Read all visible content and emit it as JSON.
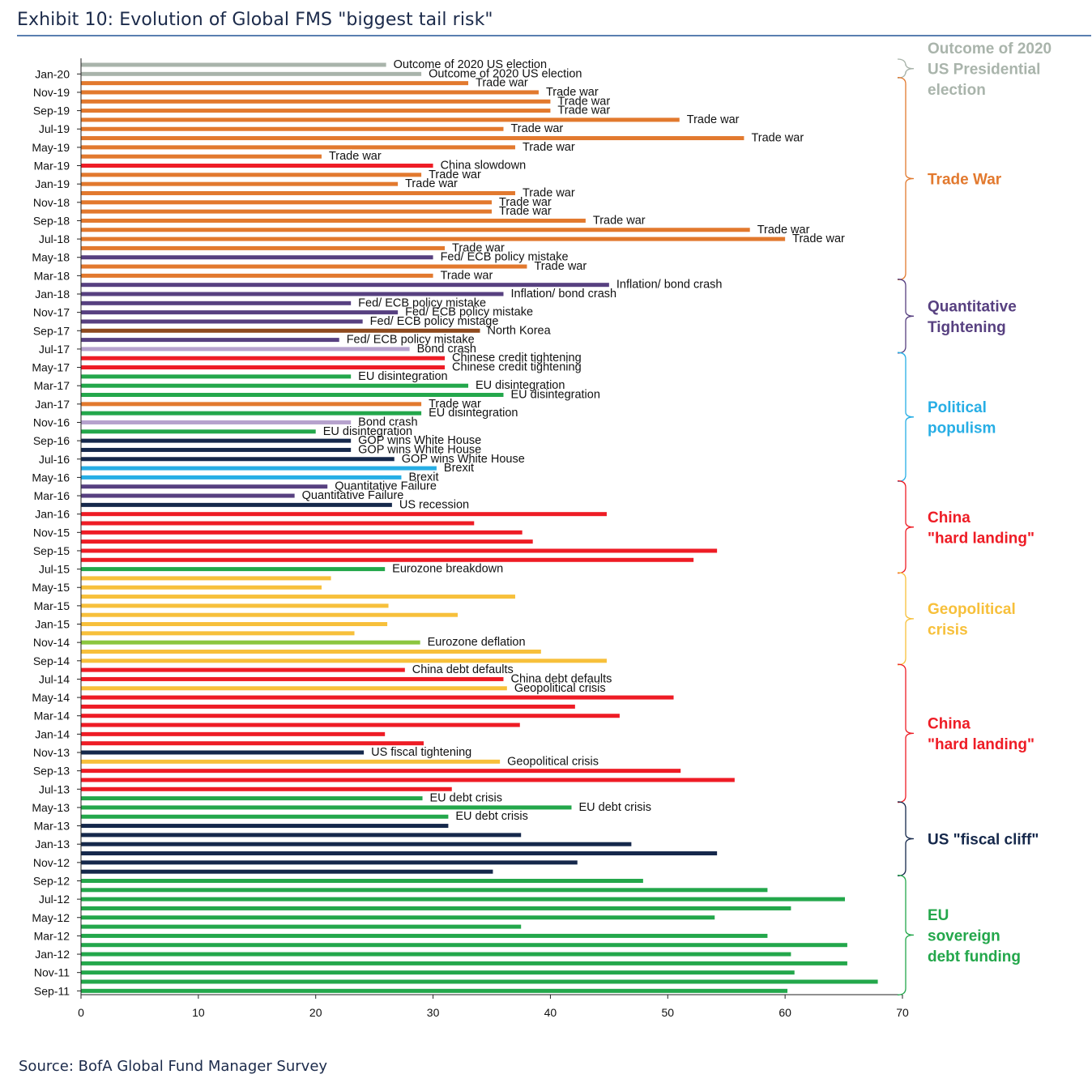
{
  "header": {
    "title": "Exhibit 10: Evolution of Global FMS \"biggest tail risk\""
  },
  "footer": {
    "source": "Source: BofA Global Fund Manager Survey"
  },
  "colors": {
    "election": "#a9b4ab",
    "trade_war": "#e2792e",
    "china": "#ee1c25",
    "fed_policy": "#574080",
    "inflation": "#574080",
    "north_korea": "#8e4a1e",
    "bond_crash": "#b6a2cd",
    "eu": "#23a74b",
    "eurozone_deflation": "#8cc63f",
    "gop": "#15284b",
    "brexit": "#27aee5",
    "quant_failure": "#574080",
    "us": "#15284b",
    "geopolitical": "#f7c03b"
  },
  "chart_data": {
    "type": "bar",
    "orientation": "horizontal",
    "xlim": [
      0,
      70
    ],
    "xticks": [
      0,
      10,
      20,
      30,
      40,
      50,
      60,
      70
    ],
    "grid": false,
    "ytick_labels": [
      "Jan-20",
      "Nov-19",
      "Sep-19",
      "Jul-19",
      "May-19",
      "Mar-19",
      "Jan-19",
      "Nov-18",
      "Sep-18",
      "Jul-18",
      "May-18",
      "Mar-18",
      "Jan-18",
      "Nov-17",
      "Sep-17",
      "Jul-17",
      "May-17",
      "Mar-17",
      "Jan-17",
      "Nov-16",
      "Sep-16",
      "Jul-16",
      "May-16",
      "Mar-16",
      "Jan-16",
      "Nov-15",
      "Sep-15",
      "Jul-15",
      "May-15",
      "Mar-15",
      "Jan-15",
      "Nov-14",
      "Sep-14",
      "Jul-14",
      "May-14",
      "Mar-14",
      "Jan-14",
      "Nov-13",
      "Sep-13",
      "Jul-13",
      "May-13",
      "Mar-13",
      "Jan-13",
      "Nov-12",
      "Sep-12",
      "Jul-12",
      "May-12",
      "Mar-12",
      "Jan-12",
      "Nov-11",
      "Sep-11"
    ],
    "bars": [
      {
        "v": 26,
        "c": "election",
        "l": "Outcome of 2020 US election"
      },
      {
        "v": 29,
        "c": "election",
        "l": "Outcome of 2020 US election"
      },
      {
        "v": 33,
        "c": "trade_war",
        "l": "Trade war"
      },
      {
        "v": 39,
        "c": "trade_war",
        "l": "Trade war"
      },
      {
        "v": 40,
        "c": "trade_war",
        "l": "Trade war"
      },
      {
        "v": 40,
        "c": "trade_war",
        "l": "Trade war"
      },
      {
        "v": 51,
        "c": "trade_war",
        "l": "Trade war"
      },
      {
        "v": 36,
        "c": "trade_war",
        "l": "Trade war"
      },
      {
        "v": 56.5,
        "c": "trade_war",
        "l": "Trade war"
      },
      {
        "v": 37,
        "c": "trade_war",
        "l": "Trade war"
      },
      {
        "v": 20.5,
        "c": "trade_war",
        "l": "Trade war"
      },
      {
        "v": 30,
        "c": "china",
        "l": "China slowdown"
      },
      {
        "v": 29,
        "c": "trade_war",
        "l": "Trade war"
      },
      {
        "v": 27,
        "c": "trade_war",
        "l": "Trade war"
      },
      {
        "v": 37,
        "c": "trade_war",
        "l": "Trade war"
      },
      {
        "v": 35,
        "c": "trade_war",
        "l": "Trade war"
      },
      {
        "v": 35,
        "c": "trade_war",
        "l": "Trade war"
      },
      {
        "v": 43,
        "c": "trade_war",
        "l": "Trade war"
      },
      {
        "v": 57,
        "c": "trade_war",
        "l": "Trade war"
      },
      {
        "v": 60,
        "c": "trade_war",
        "l": "Trade war"
      },
      {
        "v": 31,
        "c": "trade_war",
        "l": "Trade war"
      },
      {
        "v": 30,
        "c": "fed_policy",
        "l": "Fed/ ECB policy mistake"
      },
      {
        "v": 38,
        "c": "trade_war",
        "l": "Trade war"
      },
      {
        "v": 30,
        "c": "trade_war",
        "l": "Trade war"
      },
      {
        "v": 45,
        "c": "inflation",
        "l": "Inflation/ bond crash"
      },
      {
        "v": 36,
        "c": "inflation",
        "l": "Inflation/ bond crash"
      },
      {
        "v": 23,
        "c": "fed_policy",
        "l": "Fed/ ECB policy mistake"
      },
      {
        "v": 27,
        "c": "fed_policy",
        "l": "Fed/ ECB policy mistake"
      },
      {
        "v": 24,
        "c": "fed_policy",
        "l": "Fed/ ECB policy mistage"
      },
      {
        "v": 34,
        "c": "north_korea",
        "l": "North Korea"
      },
      {
        "v": 22,
        "c": "fed_policy",
        "l": "Fed/ ECB policy mistake"
      },
      {
        "v": 28,
        "c": "bond_crash",
        "l": "Bond crash"
      },
      {
        "v": 31,
        "c": "china",
        "l": "Chinese credit tightening"
      },
      {
        "v": 31,
        "c": "china",
        "l": "Chinese credit tightening"
      },
      {
        "v": 23,
        "c": "eu",
        "l": "EU disintegration"
      },
      {
        "v": 33,
        "c": "eu",
        "l": "EU disintegration"
      },
      {
        "v": 36,
        "c": "eu",
        "l": "EU disintegration"
      },
      {
        "v": 29,
        "c": "trade_war",
        "l": "Trade war"
      },
      {
        "v": 29,
        "c": "eu",
        "l": "EU disintegration"
      },
      {
        "v": 23,
        "c": "bond_crash",
        "l": "Bond crash"
      },
      {
        "v": 20,
        "c": "eu",
        "l": "EU disintegration"
      },
      {
        "v": 23,
        "c": "gop",
        "l": "GOP wins White House"
      },
      {
        "v": 23,
        "c": "gop",
        "l": "GOP wins White House"
      },
      {
        "v": 26.7,
        "c": "gop",
        "l": "GOP wins White House"
      },
      {
        "v": 30.3,
        "c": "brexit",
        "l": "Brexit"
      },
      {
        "v": 27.3,
        "c": "brexit",
        "l": "Brexit"
      },
      {
        "v": 21,
        "c": "quant_failure",
        "l": "Quantitative Failure"
      },
      {
        "v": 18.2,
        "c": "quant_failure",
        "l": "Quantitative Failure"
      },
      {
        "v": 26.5,
        "c": "us",
        "l": "US recession"
      },
      {
        "v": 44.8,
        "c": "china",
        "l": ""
      },
      {
        "v": 33.5,
        "c": "china",
        "l": ""
      },
      {
        "v": 37.6,
        "c": "china",
        "l": ""
      },
      {
        "v": 38.5,
        "c": "china",
        "l": ""
      },
      {
        "v": 54.2,
        "c": "china",
        "l": ""
      },
      {
        "v": 52.2,
        "c": "china",
        "l": ""
      },
      {
        "v": 25.9,
        "c": "eu",
        "l": "Eurozone breakdown"
      },
      {
        "v": 21.3,
        "c": "geopolitical",
        "l": ""
      },
      {
        "v": 20.5,
        "c": "geopolitical",
        "l": ""
      },
      {
        "v": 37,
        "c": "geopolitical",
        "l": ""
      },
      {
        "v": 26.2,
        "c": "geopolitical",
        "l": ""
      },
      {
        "v": 32.1,
        "c": "geopolitical",
        "l": ""
      },
      {
        "v": 26.1,
        "c": "geopolitical",
        "l": ""
      },
      {
        "v": 23.3,
        "c": "geopolitical",
        "l": ""
      },
      {
        "v": 28.9,
        "c": "eurozone_deflation",
        "l": "Eurozone deflation"
      },
      {
        "v": 39.2,
        "c": "geopolitical",
        "l": ""
      },
      {
        "v": 44.8,
        "c": "geopolitical",
        "l": ""
      },
      {
        "v": 27.6,
        "c": "china",
        "l": "China debt defaults"
      },
      {
        "v": 36,
        "c": "china",
        "l": "China debt defaults"
      },
      {
        "v": 36.3,
        "c": "geopolitical",
        "l": "Geopolitical crisis"
      },
      {
        "v": 50.5,
        "c": "china",
        "l": ""
      },
      {
        "v": 42.1,
        "c": "china",
        "l": ""
      },
      {
        "v": 45.9,
        "c": "china",
        "l": ""
      },
      {
        "v": 37.4,
        "c": "china",
        "l": ""
      },
      {
        "v": 25.9,
        "c": "china",
        "l": ""
      },
      {
        "v": 29.2,
        "c": "china",
        "l": ""
      },
      {
        "v": 24.1,
        "c": "us",
        "l": "US fiscal tightening"
      },
      {
        "v": 35.7,
        "c": "geopolitical",
        "l": "Geopolitical crisis"
      },
      {
        "v": 51.1,
        "c": "china",
        "l": ""
      },
      {
        "v": 55.7,
        "c": "china",
        "l": ""
      },
      {
        "v": 31.6,
        "c": "china",
        "l": ""
      },
      {
        "v": 29.1,
        "c": "eu",
        "l": "EU debt crisis"
      },
      {
        "v": 41.8,
        "c": "eu",
        "l": "EU debt crisis"
      },
      {
        "v": 31.3,
        "c": "eu",
        "l": "EU debt crisis"
      },
      {
        "v": 31.3,
        "c": "us",
        "l": ""
      },
      {
        "v": 37.5,
        "c": "us",
        "l": ""
      },
      {
        "v": 46.9,
        "c": "us",
        "l": ""
      },
      {
        "v": 54.2,
        "c": "us",
        "l": ""
      },
      {
        "v": 42.3,
        "c": "us",
        "l": ""
      },
      {
        "v": 35.1,
        "c": "us",
        "l": ""
      },
      {
        "v": 47.9,
        "c": "eu",
        "l": ""
      },
      {
        "v": 58.5,
        "c": "eu",
        "l": ""
      },
      {
        "v": 65.1,
        "c": "eu",
        "l": ""
      },
      {
        "v": 60.5,
        "c": "eu",
        "l": ""
      },
      {
        "v": 54.0,
        "c": "eu",
        "l": ""
      },
      {
        "v": 37.5,
        "c": "eu",
        "l": ""
      },
      {
        "v": 58.5,
        "c": "eu",
        "l": ""
      },
      {
        "v": 65.3,
        "c": "eu",
        "l": ""
      },
      {
        "v": 60.5,
        "c": "eu",
        "l": ""
      },
      {
        "v": 65.3,
        "c": "eu",
        "l": ""
      },
      {
        "v": 60.8,
        "c": "eu",
        "l": ""
      },
      {
        "v": 67.9,
        "c": "eu",
        "l": ""
      },
      {
        "v": 60.2,
        "c": "eu",
        "l": ""
      }
    ],
    "annotations": [
      {
        "lines": [
          "Outcome of  2020",
          "US Presidential",
          "election"
        ],
        "c": "election",
        "from": 0,
        "to": 1
      },
      {
        "lines": [
          "Trade War"
        ],
        "c": "trade_war",
        "from": 2,
        "to": 23
      },
      {
        "lines": [
          "Quantitative",
          "Tightening"
        ],
        "c": "fed_policy",
        "from": 24,
        "to": 31
      },
      {
        "lines": [
          "Political",
          "populism"
        ],
        "c": "brexit",
        "from": 32,
        "to": 45
      },
      {
        "lines": [
          "China",
          "\"hard landing\""
        ],
        "c": "china",
        "from": 46,
        "to": 55
      },
      {
        "lines": [
          "Geopolitical",
          "crisis"
        ],
        "c": "geopolitical",
        "from": 56,
        "to": 65
      },
      {
        "lines": [
          "China",
          "\"hard landing\""
        ],
        "c": "china",
        "from": 66,
        "to": 80
      },
      {
        "lines": [
          "US \"fiscal cliff\""
        ],
        "c": "us",
        "from": 81,
        "to": 88
      },
      {
        "lines": [
          "EU",
          "sovereign",
          "debt funding"
        ],
        "c": "eu",
        "from": 89,
        "to": 101
      }
    ]
  }
}
